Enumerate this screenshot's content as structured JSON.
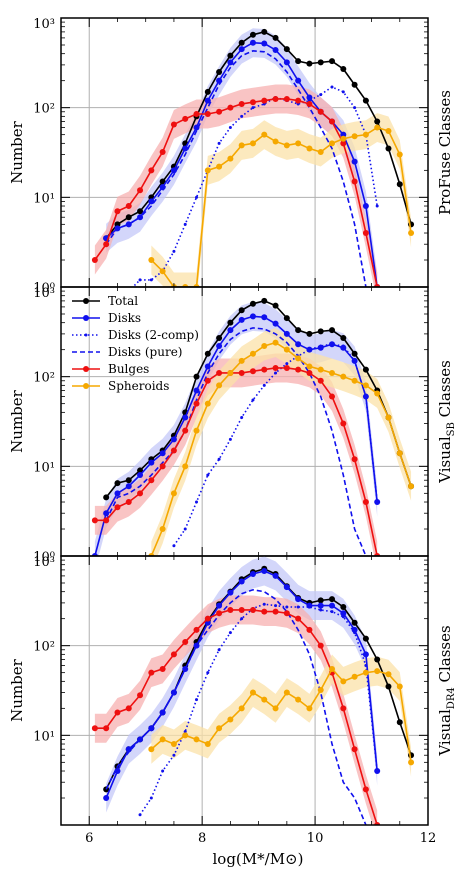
{
  "figure": {
    "xlabel": "log(M*/M⊙)",
    "ylabel": "Number",
    "xticks": [
      "6",
      "8",
      "10",
      "12"
    ],
    "panel_yticks": [
      [
        "10³",
        "10²",
        "10¹",
        "10⁰"
      ],
      [
        "10³",
        "10²",
        "10¹",
        "10⁰"
      ],
      [
        "10³",
        "10²",
        "10¹"
      ]
    ],
    "legend": [
      "Total",
      "Disks",
      "Disks (2-comp)",
      "Disks (pure)",
      "Bulges",
      "Spheroids"
    ]
  },
  "chart_data": [
    {
      "type": "line",
      "title": "ProFuse Classes",
      "panel_label": "ProFuse Classes",
      "xlabel": "log(M*/M⊙)",
      "ylabel": "Number",
      "yscale": "log",
      "xlim": [
        5.5,
        12
      ],
      "ylim": [
        1,
        1000
      ],
      "grid": true,
      "series": [
        {
          "name": "Total",
          "color": "#000000",
          "style": "solid",
          "x": [
            6.3,
            6.5,
            6.7,
            6.9,
            7.1,
            7.3,
            7.5,
            7.7,
            7.9,
            8.1,
            8.3,
            8.5,
            8.7,
            8.9,
            9.1,
            9.3,
            9.5,
            9.7,
            9.9,
            10.1,
            10.3,
            10.5,
            10.7,
            10.9,
            11.1,
            11.3,
            11.5,
            11.7
          ],
          "y": [
            3.5,
            5,
            6,
            7,
            10,
            15,
            22,
            40,
            80,
            150,
            250,
            380,
            530,
            650,
            700,
            600,
            450,
            330,
            310,
            320,
            330,
            270,
            180,
            120,
            70,
            35,
            14,
            5
          ]
        },
        {
          "name": "Disks",
          "color": "#1010ee",
          "style": "solid",
          "x": [
            6.3,
            6.5,
            6.7,
            6.9,
            7.1,
            7.3,
            7.5,
            7.7,
            7.9,
            8.1,
            8.3,
            8.5,
            8.7,
            8.9,
            9.1,
            9.3,
            9.5,
            9.7,
            9.9,
            10.1,
            10.3,
            10.5,
            10.7,
            10.9,
            11.1
          ],
          "y": [
            3.5,
            4.5,
            5,
            6,
            9,
            13,
            20,
            35,
            60,
            120,
            200,
            320,
            450,
            530,
            520,
            440,
            320,
            200,
            130,
            90,
            70,
            50,
            25,
            8,
            1
          ]
        },
        {
          "name": "Disks (2-comp)",
          "color": "#1010ee",
          "style": "dotted",
          "x": [
            6.7,
            6.9,
            7.1,
            7.3,
            7.5,
            7.7,
            7.9,
            8.1,
            8.3,
            8.5,
            8.7,
            8.9,
            9.1,
            9.3,
            9.5,
            9.7,
            9.9,
            10.1,
            10.3,
            10.5,
            10.7,
            10.9,
            11.1
          ],
          "y": [
            0.9,
            1.2,
            1.2,
            1.5,
            2.5,
            5,
            10,
            20,
            40,
            60,
            80,
            100,
            110,
            130,
            120,
            110,
            120,
            140,
            170,
            150,
            100,
            50,
            8
          ]
        },
        {
          "name": "Disks (pure)",
          "color": "#1010ee",
          "style": "dashed",
          "x": [
            6.3,
            6.5,
            6.7,
            6.9,
            7.1,
            7.3,
            7.5,
            7.7,
            7.9,
            8.1,
            8.3,
            8.5,
            8.7,
            8.9,
            9.1,
            9.3,
            9.5,
            9.7,
            9.9,
            10.1,
            10.3,
            10.5,
            10.7,
            10.9
          ],
          "y": [
            3,
            4.5,
            5,
            6,
            8,
            12,
            18,
            30,
            55,
            100,
            180,
            280,
            380,
            430,
            420,
            350,
            250,
            160,
            100,
            60,
            35,
            15,
            5,
            1
          ]
        },
        {
          "name": "Bulges",
          "color": "#ee1010",
          "style": "solid",
          "x": [
            6.1,
            6.3,
            6.5,
            6.7,
            6.9,
            7.1,
            7.3,
            7.5,
            7.7,
            7.9,
            8.1,
            8.3,
            8.5,
            8.7,
            8.9,
            9.1,
            9.3,
            9.5,
            9.7,
            9.9,
            10.1,
            10.3,
            10.5,
            10.7,
            10.9,
            11.1
          ],
          "y": [
            2,
            3,
            7,
            8,
            12,
            20,
            32,
            65,
            75,
            85,
            85,
            90,
            100,
            110,
            115,
            120,
            125,
            125,
            120,
            110,
            90,
            70,
            40,
            15,
            4,
            1
          ]
        },
        {
          "name": "Spheroids",
          "color": "#f5a800",
          "style": "solid",
          "x": [
            7.1,
            7.3,
            7.5,
            7.7,
            7.9,
            8.1,
            8.3,
            8.5,
            8.7,
            8.9,
            9.1,
            9.3,
            9.5,
            9.7,
            9.9,
            10.1,
            10.3,
            10.5,
            10.7,
            10.9,
            11.1,
            11.3,
            11.5,
            11.7
          ],
          "y": [
            2,
            1.5,
            1,
            1,
            1,
            20,
            22,
            27,
            38,
            40,
            50,
            42,
            38,
            40,
            35,
            32,
            40,
            45,
            48,
            50,
            60,
            55,
            30,
            4
          ]
        }
      ]
    },
    {
      "type": "line",
      "title": "Visual_SB Classes",
      "panel_label": "Visual",
      "panel_label_sub": "SB",
      "panel_label_rest": " Classes",
      "xlabel": "log(M*/M⊙)",
      "ylabel": "Number",
      "yscale": "log",
      "xlim": [
        5.5,
        12
      ],
      "ylim": [
        1,
        1000
      ],
      "grid": true,
      "series": [
        {
          "name": "Total",
          "color": "#000000",
          "style": "solid",
          "x": [
            6.3,
            6.5,
            6.7,
            6.9,
            7.1,
            7.3,
            7.5,
            7.7,
            7.9,
            8.1,
            8.3,
            8.5,
            8.7,
            8.9,
            9.1,
            9.3,
            9.5,
            9.7,
            9.9,
            10.1,
            10.3,
            10.5,
            10.7,
            10.9,
            11.1,
            11.3,
            11.5,
            11.7
          ],
          "y": [
            4.5,
            6.5,
            7,
            9,
            12,
            15,
            22,
            40,
            100,
            180,
            270,
            400,
            550,
            650,
            700,
            620,
            450,
            330,
            300,
            320,
            330,
            270,
            180,
            120,
            70,
            35,
            14,
            6
          ]
        },
        {
          "name": "Disks",
          "color": "#1010ee",
          "style": "solid",
          "x": [
            6.1,
            6.3,
            6.5,
            6.7,
            6.9,
            7.1,
            7.3,
            7.5,
            7.7,
            7.9,
            8.1,
            8.3,
            8.5,
            8.7,
            8.9,
            9.1,
            9.3,
            9.5,
            9.7,
            9.9,
            10.1,
            10.3,
            10.5,
            10.7,
            10.9,
            11.1
          ],
          "y": [
            1,
            3,
            5,
            6,
            8,
            11,
            14,
            20,
            35,
            70,
            130,
            220,
            330,
            430,
            470,
            460,
            390,
            300,
            230,
            200,
            210,
            230,
            210,
            150,
            60,
            4
          ]
        },
        {
          "name": "Disks (2-comp)",
          "color": "#1010ee",
          "style": "dotted",
          "x": [
            7.5,
            7.7,
            7.9,
            8.1,
            8.3,
            8.5,
            8.7,
            8.9,
            9.1,
            9.3,
            9.5,
            9.7,
            9.9,
            10.1,
            10.3,
            10.5,
            10.7,
            10.9,
            11.1
          ],
          "y": [
            1.3,
            2,
            4,
            8,
            12,
            20,
            35,
            55,
            80,
            110,
            140,
            170,
            200,
            220,
            230,
            220,
            150,
            60,
            4
          ]
        },
        {
          "name": "Disks (pure)",
          "color": "#1010ee",
          "style": "dashed",
          "x": [
            6.3,
            6.5,
            6.7,
            6.9,
            7.1,
            7.3,
            7.5,
            7.7,
            7.9,
            8.1,
            8.3,
            8.5,
            8.7,
            8.9,
            9.1,
            9.3,
            9.5,
            9.7,
            9.9,
            10.1,
            10.3,
            10.5,
            10.7,
            10.9
          ],
          "y": [
            2.5,
            4.5,
            5,
            6,
            8,
            11,
            15,
            25,
            55,
            110,
            180,
            260,
            320,
            350,
            340,
            300,
            240,
            170,
            110,
            60,
            25,
            8,
            2,
            1
          ]
        },
        {
          "name": "Bulges",
          "color": "#ee1010",
          "style": "solid",
          "x": [
            6.1,
            6.3,
            6.5,
            6.7,
            6.9,
            7.1,
            7.3,
            7.5,
            7.7,
            7.9,
            8.1,
            8.3,
            8.5,
            8.7,
            8.9,
            9.1,
            9.3,
            9.5,
            9.7,
            9.9,
            10.1,
            10.3,
            10.5,
            10.7,
            10.9,
            11.1
          ],
          "y": [
            2.5,
            2.5,
            3.5,
            4,
            5,
            7,
            10,
            15,
            25,
            50,
            90,
            110,
            110,
            110,
            115,
            120,
            125,
            125,
            120,
            110,
            90,
            60,
            30,
            12,
            4,
            1
          ]
        },
        {
          "name": "Spheroids",
          "color": "#f5a800",
          "style": "solid",
          "x": [
            7.1,
            7.3,
            7.5,
            7.7,
            7.9,
            8.1,
            8.3,
            8.5,
            8.7,
            8.9,
            9.1,
            9.3,
            9.5,
            9.7,
            9.9,
            10.1,
            10.3,
            10.5,
            10.7,
            10.9,
            11.1,
            11.3,
            11.5,
            11.7
          ],
          "y": [
            1,
            2,
            5,
            10,
            25,
            50,
            80,
            110,
            150,
            180,
            220,
            240,
            200,
            160,
            130,
            120,
            110,
            100,
            90,
            80,
            65,
            35,
            14,
            6
          ]
        }
      ]
    },
    {
      "type": "line",
      "title": "Visual_DR4 Classes",
      "panel_label": "Visual",
      "panel_label_sub": "DR4",
      "panel_label_rest": " Classes",
      "xlabel": "log(M*/M⊙)",
      "ylabel": "Number",
      "yscale": "log",
      "xlim": [
        5.5,
        12
      ],
      "ylim": [
        1,
        1000
      ],
      "grid": true,
      "series": [
        {
          "name": "Total",
          "color": "#000000",
          "style": "solid",
          "x": [
            6.3,
            6.5,
            6.7,
            6.9,
            7.1,
            7.3,
            7.5,
            7.7,
            7.9,
            8.1,
            8.3,
            8.5,
            8.7,
            8.9,
            9.1,
            9.3,
            9.5,
            9.7,
            9.9,
            10.1,
            10.3,
            10.5,
            10.7,
            10.9,
            11.1,
            11.3,
            11.5,
            11.7
          ],
          "y": [
            2.5,
            4.5,
            7,
            9,
            12,
            18,
            30,
            60,
            110,
            190,
            290,
            400,
            550,
            660,
            720,
            630,
            460,
            340,
            300,
            320,
            330,
            270,
            180,
            120,
            70,
            35,
            14,
            6
          ]
        },
        {
          "name": "Disks",
          "color": "#1010ee",
          "style": "solid",
          "x": [
            6.3,
            6.5,
            6.7,
            6.9,
            7.1,
            7.3,
            7.5,
            7.7,
            7.9,
            8.1,
            8.3,
            8.5,
            8.7,
            8.9,
            9.1,
            9.3,
            9.5,
            9.7,
            9.9,
            10.1,
            10.3,
            10.5,
            10.7,
            10.9,
            11.1
          ],
          "y": [
            2,
            4,
            7,
            9,
            12,
            18,
            30,
            55,
            100,
            180,
            280,
            390,
            520,
            630,
            680,
            600,
            450,
            330,
            280,
            280,
            280,
            230,
            150,
            80,
            4
          ]
        },
        {
          "name": "Disks (2-comp)",
          "color": "#1010ee",
          "style": "dotted",
          "x": [
            6.9,
            7.1,
            7.3,
            7.5,
            7.7,
            7.9,
            8.1,
            8.3,
            8.5,
            8.7,
            8.9,
            9.1,
            9.3,
            9.5,
            9.7,
            9.9,
            10.1,
            10.3,
            10.5,
            10.7,
            10.9,
            11.1
          ],
          "y": [
            1.3,
            2,
            4,
            6,
            11,
            25,
            50,
            90,
            140,
            200,
            260,
            290,
            280,
            270,
            270,
            270,
            250,
            240,
            210,
            140,
            60,
            4
          ]
        },
        {
          "name": "Disks (pure)",
          "color": "#1010ee",
          "style": "dashed",
          "x": [
            6.3,
            6.5,
            6.7,
            6.9,
            7.1,
            7.3,
            7.5,
            7.7,
            7.9,
            8.1,
            8.3,
            8.5,
            8.7,
            8.9,
            9.1,
            9.3,
            9.5,
            9.7,
            9.9,
            10.1,
            10.3,
            10.5,
            10.7,
            10.9
          ],
          "y": [
            2.5,
            4.5,
            6.5,
            9,
            12,
            18,
            30,
            55,
            100,
            150,
            220,
            300,
            380,
            420,
            400,
            330,
            240,
            150,
            80,
            30,
            8,
            3,
            2,
            1
          ]
        },
        {
          "name": "Bulges",
          "color": "#ee1010",
          "style": "solid",
          "x": [
            6.1,
            6.3,
            6.5,
            6.7,
            6.9,
            7.1,
            7.3,
            7.5,
            7.7,
            7.9,
            8.1,
            8.3,
            8.5,
            8.7,
            8.9,
            9.1,
            9.3,
            9.5,
            9.7,
            9.9,
            10.1,
            10.3,
            10.5,
            10.7,
            10.9,
            11.1
          ],
          "y": [
            12,
            12,
            18,
            20,
            28,
            50,
            55,
            80,
            110,
            150,
            200,
            230,
            250,
            250,
            250,
            240,
            240,
            230,
            200,
            150,
            100,
            50,
            20,
            7,
            2.5,
            1
          ]
        },
        {
          "name": "Spheroids",
          "color": "#f5a800",
          "style": "solid",
          "x": [
            7.1,
            7.3,
            7.5,
            7.7,
            7.9,
            8.1,
            8.3,
            8.5,
            8.7,
            8.9,
            9.1,
            9.3,
            9.5,
            9.7,
            9.9,
            10.1,
            10.3,
            10.5,
            10.7,
            10.9,
            11.1,
            11.3,
            11.5,
            11.7
          ],
          "y": [
            7,
            9,
            8,
            10,
            9,
            8,
            12,
            15,
            20,
            30,
            25,
            20,
            30,
            25,
            20,
            32,
            55,
            40,
            45,
            50,
            52,
            48,
            35,
            5
          ]
        }
      ]
    }
  ]
}
